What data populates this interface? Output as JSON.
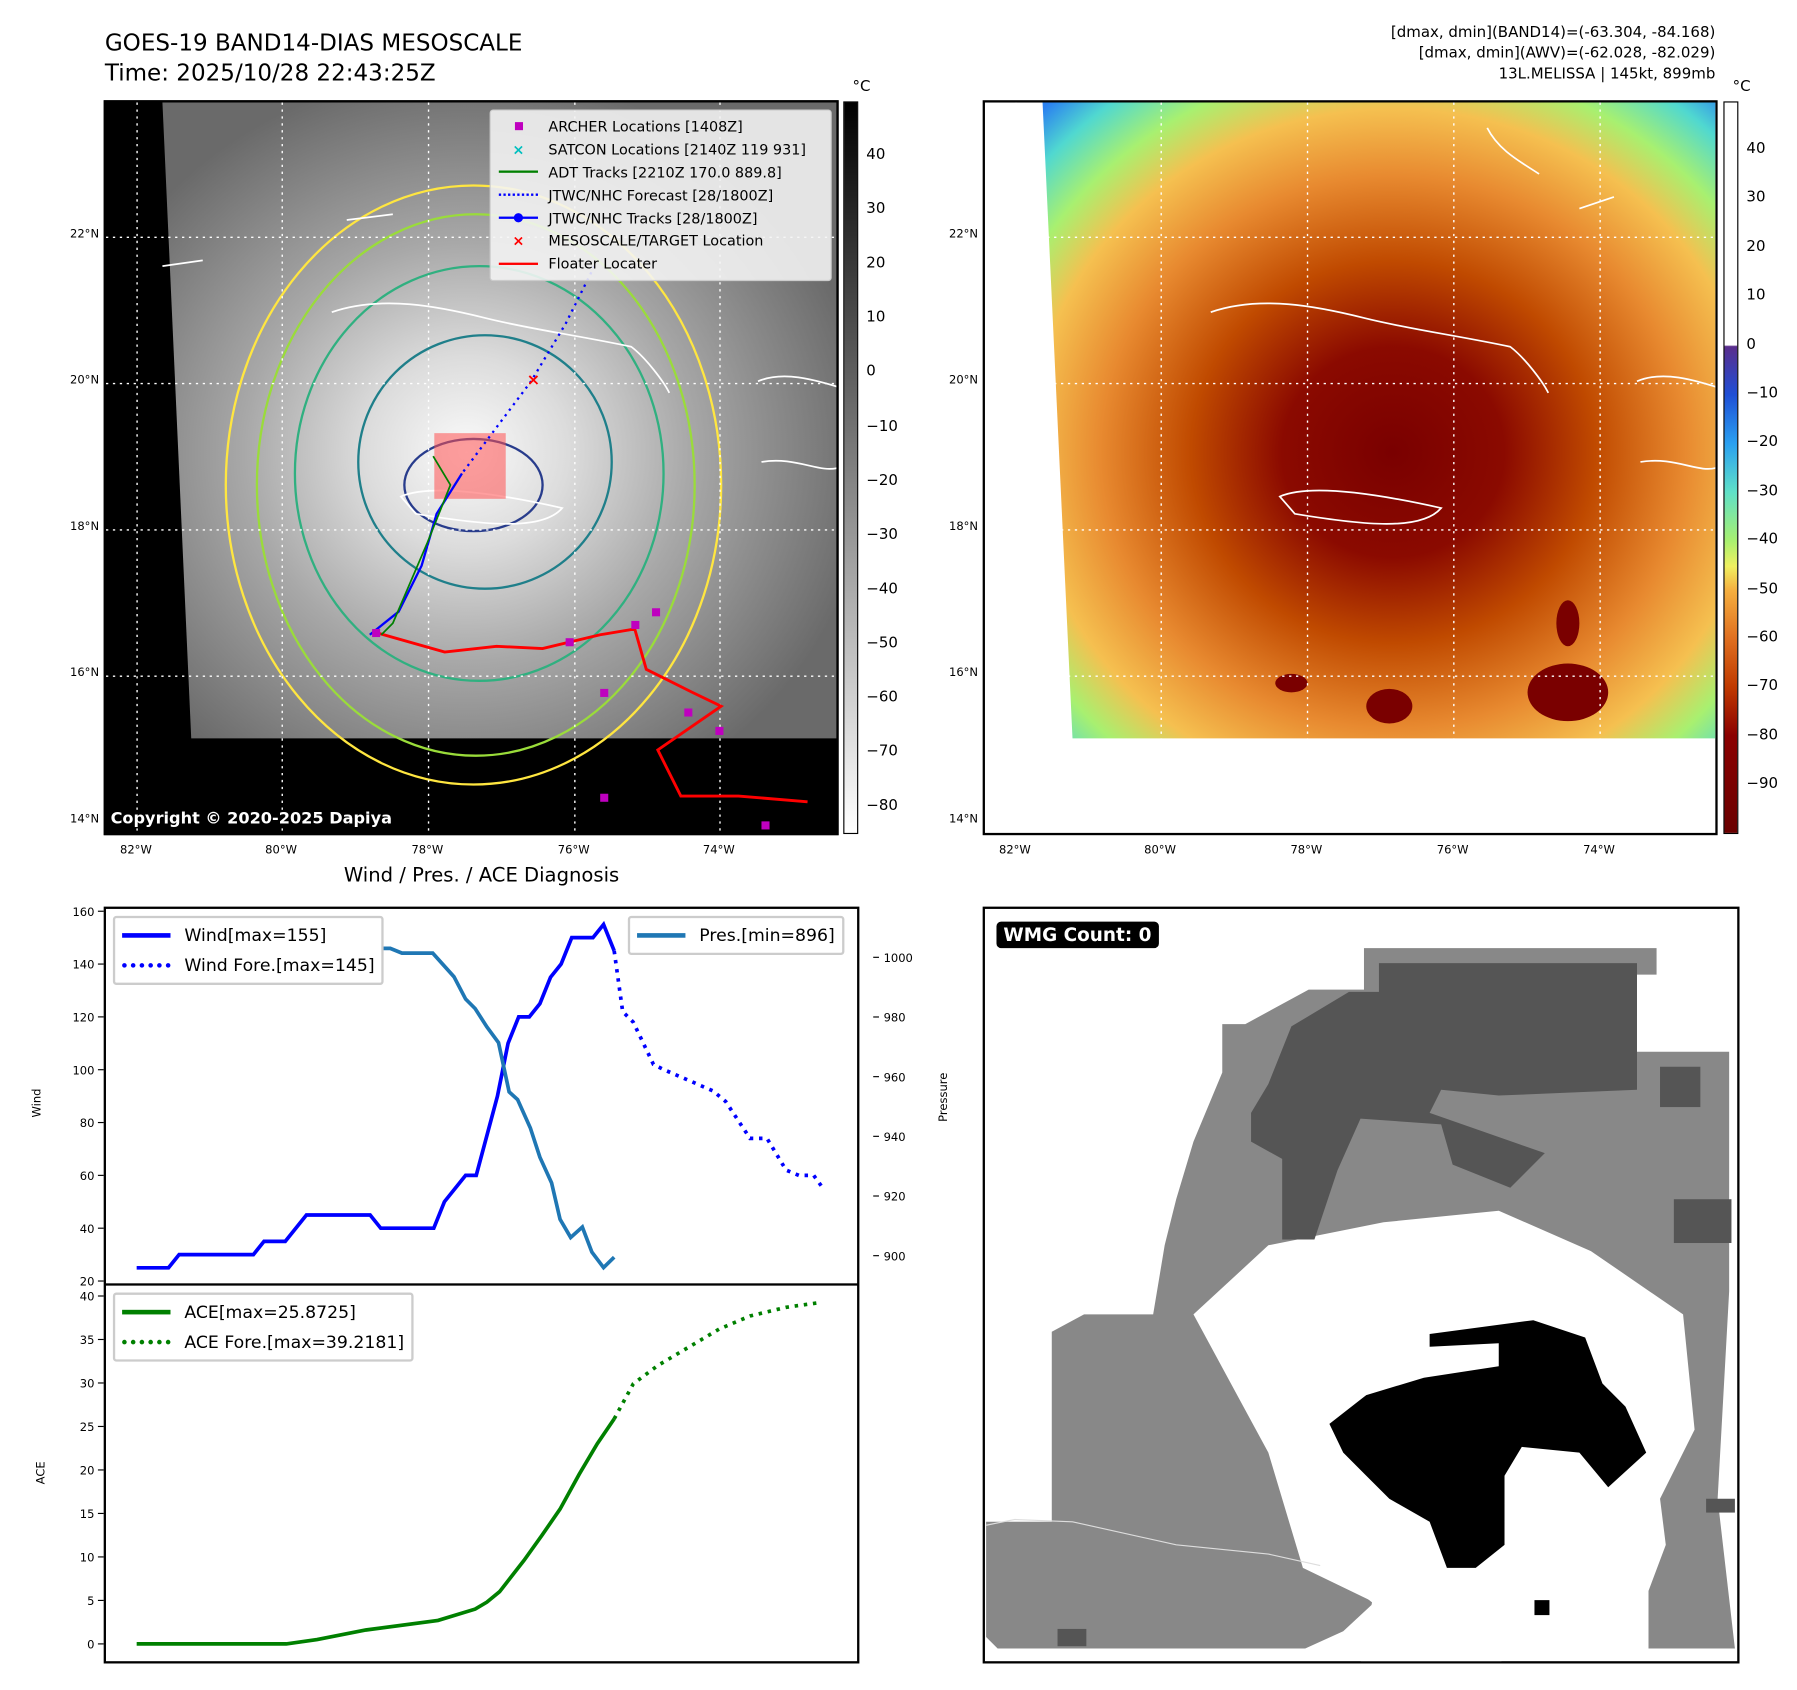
{
  "header": {
    "title_line1": "GOES-19 BAND14-DIAS MESOSCALE",
    "title_line2": "Time: 2025/10/28 22:43:25Z",
    "info_line1": "[dmax, dmin](BAND14)=(-63.304, -84.168)",
    "info_line2": "[dmax, dmin](AWV)=(-62.028, -82.029)",
    "info_line3": "13L.MELISSA | 145kt, 899mb"
  },
  "maps": {
    "lat_labels": [
      "22°N",
      "20°N",
      "18°N",
      "16°N",
      "14°N"
    ],
    "lon_labels": [
      "82°W",
      "80°W",
      "78°W",
      "76°W",
      "74°W"
    ],
    "colorbar_unit": "°C",
    "colorbar1_ticks": [
      "40",
      "30",
      "20",
      "10",
      "0",
      "−10",
      "−20",
      "−30",
      "−40",
      "−50",
      "−60",
      "−70",
      "−80"
    ],
    "colorbar2_ticks": [
      "40",
      "30",
      "20",
      "10",
      "0",
      "−10",
      "−20",
      "−30",
      "−40",
      "−50",
      "−60",
      "−70",
      "−80",
      "−90"
    ],
    "copyright": "Copyright © 2020-2025 Dapiya",
    "colors": {
      "track_red": "#ff0000",
      "track_blue": "#0000ff",
      "adt_green": "#008000",
      "archer": "#bf00bf",
      "satcon": "#00bfbf"
    },
    "legend": [
      {
        "icon": "magenta-square-icon",
        "label": "ARCHER Locations [1408Z]"
      },
      {
        "icon": "cyan-x-icon",
        "label": "SATCON Locations [2140Z 119 931]"
      },
      {
        "icon": "green-line-icon",
        "label": "ADT Tracks [2210Z 170.0 889.8]"
      },
      {
        "icon": "blue-dotted-line-icon",
        "label": "JTWC/NHC Forecast [28/1800Z]"
      },
      {
        "icon": "blue-line-dot-icon",
        "label": "JTWC/NHC Tracks [28/1800Z]"
      },
      {
        "icon": "red-x-icon",
        "label": "MESOSCALE/TARGET Location"
      },
      {
        "icon": "red-line-icon",
        "label": "Floater Locater"
      }
    ]
  },
  "wmg": {
    "label": "WMG Count: 0"
  },
  "chart_data": [
    {
      "type": "line",
      "title": "Wind / Pres. / ACE Diagnosis",
      "xlabel": "",
      "ylabel": "Wind",
      "ylabel_right": "Pressure",
      "ylim": [
        20,
        160
      ],
      "ylim_right": [
        885,
        1015
      ],
      "xlim": [
        -3,
        68
      ],
      "yticks": [
        "160",
        "140",
        "120",
        "100",
        "80",
        "60",
        "40",
        "20"
      ],
      "yticks_right": [
        "1000",
        "980",
        "960",
        "940",
        "920",
        "900"
      ],
      "legend_left": [
        "Wind[max=155]",
        "Wind Fore.[max=145]"
      ],
      "legend_right": [
        "Pres.[min=896]"
      ],
      "series": [
        {
          "name": "Wind",
          "color": "#0000ff",
          "style": "solid",
          "x": [
            0,
            3,
            4,
            11,
            12,
            14,
            16,
            22,
            23,
            28,
            29,
            31,
            32,
            34,
            35,
            36,
            37,
            38,
            39,
            40,
            41,
            43,
            44,
            45
          ],
          "y": [
            25,
            25,
            30,
            30,
            35,
            35,
            45,
            45,
            40,
            40,
            50,
            60,
            60,
            90,
            110,
            120,
            120,
            125,
            135,
            140,
            150,
            150,
            155,
            145
          ]
        },
        {
          "name": "Wind Fore.",
          "color": "#0000ff",
          "style": "dotted",
          "x": [
            45,
            45.8,
            46.8,
            48.7,
            49.7,
            52,
            54.3,
            55.5,
            57.8,
            59.4,
            61.2,
            62.4,
            63.8,
            64.7
          ],
          "y": [
            145,
            122,
            118,
            102,
            100,
            96,
            92,
            88,
            74,
            74,
            62,
            60,
            60,
            55
          ]
        },
        {
          "name": "Pres.",
          "color": "#1f77b4",
          "style": "solid",
          "axis": "right",
          "x": [
            0,
            4,
            4.9,
            7.2,
            8.3,
            10,
            12.9,
            14.9,
            16.1,
            18.1,
            19,
            21,
            23,
            23.9,
            25,
            27.9,
            29.9,
            31,
            31.9,
            33,
            34.1,
            35.1,
            35.9,
            37.1,
            38,
            39.1,
            39.9,
            40.9,
            42,
            42.9,
            44,
            45
          ],
          "y": [
            1011.5,
            1011.5,
            1010.6,
            1010.6,
            1009.4,
            1009.4,
            1008,
            1004,
            1003,
            1003,
            1001.4,
            1001.4,
            1003,
            1003,
            1001.4,
            1001.4,
            993.5,
            986,
            982.8,
            976.7,
            971.4,
            954.9,
            952.3,
            942.8,
            933,
            924.4,
            912.2,
            906.1,
            909.6,
            901.2,
            896,
            899.5
          ]
        }
      ]
    },
    {
      "type": "line",
      "xlabel": "",
      "ylabel": "ACE",
      "ylim": [
        -2,
        40.5
      ],
      "xlim": [
        -3,
        68
      ],
      "yticks": [
        "40",
        "35",
        "30",
        "25",
        "20",
        "15",
        "10",
        "5",
        "0"
      ],
      "legend": [
        "ACE[max=25.8725]",
        "ACE Fore.[max=39.2181]"
      ],
      "series": [
        {
          "name": "ACE",
          "color": "#008000",
          "style": "solid",
          "x": [
            0,
            14.1,
            17,
            21.6,
            28.4,
            31.9,
            33,
            34.2,
            36.5,
            38.2,
            39.9,
            41.7,
            43.4,
            45
          ],
          "y": [
            0,
            0,
            0.5,
            1.6,
            2.7,
            4.0,
            4.8,
            6,
            9.6,
            12.5,
            15.5,
            19.5,
            23,
            25.87
          ]
        },
        {
          "name": "ACE Fore.",
          "color": "#008000",
          "style": "dotted",
          "x": [
            45,
            46.8,
            49.1,
            52,
            54.9,
            57.8,
            61.2,
            64.1
          ],
          "y": [
            25.87,
            29.9,
            32,
            34.1,
            36.2,
            37.7,
            38.7,
            39.2
          ]
        }
      ]
    }
  ]
}
